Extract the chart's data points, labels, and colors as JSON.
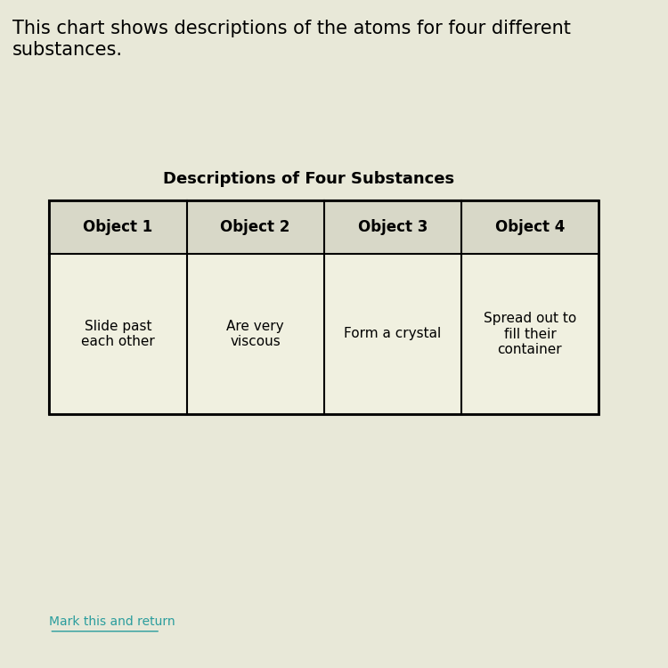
{
  "title_text": "This chart shows descriptions of the atoms for four different\nsubstances.",
  "table_title": "Descriptions of Four Substances",
  "col_headers": [
    "Object 1",
    "Object 2",
    "Object 3",
    "Object 4"
  ],
  "col_data": [
    "Slide past\neach other",
    "Are very\nviscous",
    "Form a crystal",
    "Spread out to\nfill their\ncontainer"
  ],
  "link_text": "Mark this and return",
  "bg_color": "#e8e8d8",
  "table_bg": "#f0f0e0",
  "header_bg": "#d8d8c8",
  "border_color": "#000000",
  "title_color": "#000000",
  "table_title_color": "#000000",
  "header_text_color": "#000000",
  "data_text_color": "#000000",
  "link_color": "#2a9d9d",
  "title_fontsize": 15,
  "table_title_fontsize": 13,
  "header_fontsize": 12,
  "data_fontsize": 11,
  "link_fontsize": 10
}
